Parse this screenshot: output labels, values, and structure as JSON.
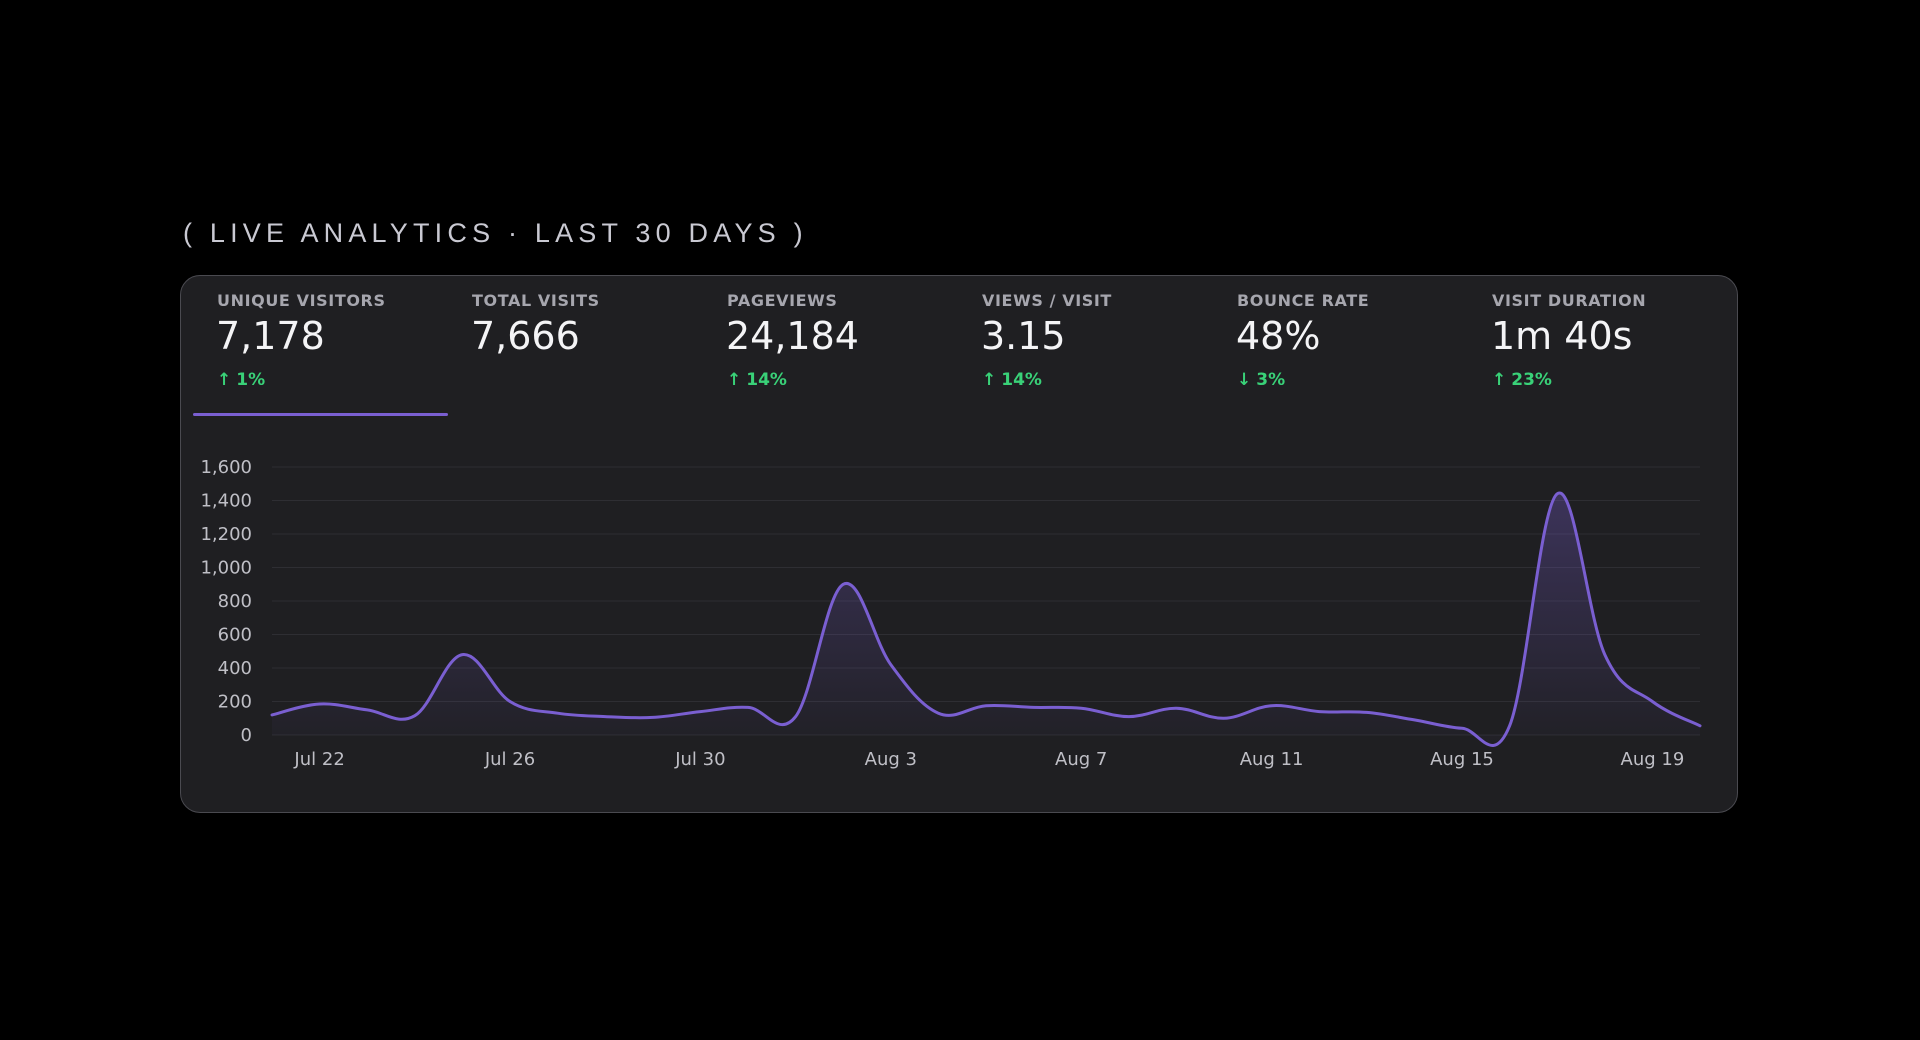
{
  "header": {
    "label": "( LIVE ANALYTICS · LAST 30 DAYS )"
  },
  "metrics": [
    {
      "label": "UNIQUE VISITORS",
      "value": "7,178",
      "change": "1%",
      "direction": "up",
      "selected": true
    },
    {
      "label": "TOTAL VISITS",
      "value": "7,666",
      "change": "",
      "direction": "",
      "selected": false
    },
    {
      "label": "PAGEVIEWS",
      "value": "24,184",
      "change": "14%",
      "direction": "up",
      "selected": false
    },
    {
      "label": "VIEWS / VISIT",
      "value": "3.15",
      "change": "14%",
      "direction": "up",
      "selected": false
    },
    {
      "label": "BOUNCE RATE",
      "value": "48%",
      "change": "3%",
      "direction": "down",
      "selected": false
    },
    {
      "label": "VISIT DURATION",
      "value": "1m 40s",
      "change": "23%",
      "direction": "up",
      "selected": false
    }
  ],
  "colors": {
    "background": "#000000",
    "card": "#1f1f22",
    "accent": "#7a5fd1",
    "positive": "#39d178"
  },
  "chart_data": {
    "type": "area",
    "series": [
      {
        "values": [
          120,
          185,
          150,
          115,
          480,
          200,
          130,
          110,
          105,
          140,
          165,
          110,
          900,
          420,
          130,
          175,
          165,
          160,
          110,
          160,
          100,
          175,
          140,
          135,
          90,
          40,
          55,
          1440,
          480,
          200,
          55
        ]
      }
    ],
    "x": [
      "Jul 21",
      "Jul 22",
      "Jul 23",
      "Jul 24",
      "Jul 25",
      "Jul 26",
      "Jul 27",
      "Jul 28",
      "Jul 29",
      "Jul 30",
      "Jul 31",
      "Aug 1",
      "Aug 2",
      "Aug 3",
      "Aug 4",
      "Aug 5",
      "Aug 6",
      "Aug 7",
      "Aug 8",
      "Aug 9",
      "Aug 10",
      "Aug 11",
      "Aug 12",
      "Aug 13",
      "Aug 14",
      "Aug 15",
      "Aug 16",
      "Aug 17",
      "Aug 18",
      "Aug 19",
      "Aug 20"
    ],
    "x_ticks": [
      "Jul 22",
      "Jul 26",
      "Jul 30",
      "Aug 3",
      "Aug 7",
      "Aug 11",
      "Aug 15",
      "Aug 19"
    ],
    "y_ticks": [
      "0",
      "200",
      "400",
      "600",
      "800",
      "1,000",
      "1,200",
      "1,400",
      "1,600"
    ],
    "ylim": [
      0,
      1600
    ],
    "grid": true
  }
}
